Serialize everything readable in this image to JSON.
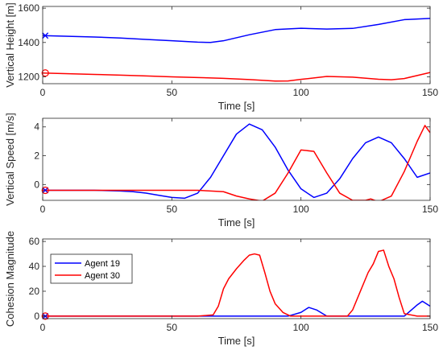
{
  "chart_data": [
    {
      "type": "line",
      "xlabel": "Time [s]",
      "ylabel": "Vertical Height [m]",
      "xlim": [
        0,
        150
      ],
      "ylim": [
        1160,
        1610
      ],
      "xticks": [
        0,
        50,
        100,
        150
      ],
      "yticks": [
        1200,
        1400,
        1600
      ],
      "grid": false,
      "start_markers": [
        {
          "series": "Agent 19",
          "marker": "x",
          "x": 1,
          "y": 1440
        },
        {
          "series": "Agent 30",
          "marker": "o",
          "x": 1,
          "y": 1222
        }
      ],
      "series": [
        {
          "name": "Agent 19",
          "color": "#0000FF",
          "x": [
            0,
            10,
            20,
            30,
            40,
            50,
            60,
            65,
            70,
            80,
            90,
            100,
            110,
            120,
            130,
            140,
            150
          ],
          "y": [
            1440,
            1436,
            1432,
            1426,
            1418,
            1410,
            1402,
            1400,
            1410,
            1445,
            1475,
            1483,
            1478,
            1482,
            1505,
            1533,
            1540
          ]
        },
        {
          "name": "Agent 30",
          "color": "#FF0000",
          "x": [
            0,
            10,
            20,
            30,
            40,
            50,
            60,
            70,
            80,
            90,
            95,
            100,
            110,
            120,
            130,
            135,
            140,
            150
          ],
          "y": [
            1222,
            1218,
            1214,
            1210,
            1205,
            1200,
            1196,
            1191,
            1184,
            1175,
            1176,
            1185,
            1202,
            1198,
            1186,
            1183,
            1190,
            1225
          ]
        }
      ]
    },
    {
      "type": "line",
      "xlabel": "Time [s]",
      "ylabel": "Vertical Speed [m/s]",
      "xlim": [
        0,
        150
      ],
      "ylim": [
        -1.1,
        4.6
      ],
      "xticks": [
        0,
        50,
        100,
        150
      ],
      "yticks": [
        0,
        2,
        4
      ],
      "grid": false,
      "start_markers": [
        {
          "series": "Agent 19",
          "marker": "x",
          "x": 1,
          "y": -0.4
        },
        {
          "series": "Agent 30",
          "marker": "o",
          "x": 1,
          "y": -0.4
        }
      ],
      "series": [
        {
          "name": "Agent 19",
          "color": "#0000FF",
          "x": [
            0,
            10,
            20,
            30,
            35,
            40,
            45,
            50,
            55,
            60,
            65,
            70,
            75,
            80,
            85,
            90,
            95,
            100,
            105,
            110,
            115,
            120,
            125,
            130,
            135,
            140,
            145,
            150
          ],
          "y": [
            -0.4,
            -0.4,
            -0.4,
            -0.45,
            -0.5,
            -0.6,
            -0.75,
            -0.9,
            -0.95,
            -0.6,
            0.5,
            2.0,
            3.5,
            4.2,
            3.8,
            2.6,
            1.0,
            -0.3,
            -0.9,
            -0.6,
            0.4,
            1.8,
            2.9,
            3.3,
            2.9,
            1.8,
            0.5,
            0.8
          ]
        },
        {
          "name": "Agent 30",
          "color": "#FF0000",
          "x": [
            0,
            10,
            20,
            30,
            40,
            50,
            60,
            65,
            70,
            75,
            80,
            85,
            90,
            95,
            100,
            105,
            110,
            115,
            120,
            125,
            127,
            130,
            135,
            140,
            145,
            148,
            150
          ],
          "y": [
            -0.4,
            -0.4,
            -0.4,
            -0.4,
            -0.4,
            -0.4,
            -0.4,
            -0.45,
            -0.5,
            -0.8,
            -1.0,
            -1.15,
            -0.6,
            0.8,
            2.4,
            2.3,
            0.8,
            -0.6,
            -1.1,
            -1.1,
            -1.0,
            -1.2,
            -0.8,
            0.9,
            3.0,
            4.1,
            3.6
          ]
        }
      ]
    },
    {
      "type": "line",
      "xlabel": "Time [s]",
      "ylabel": "Cohesion Magnitude",
      "xlim": [
        0,
        150
      ],
      "ylim": [
        -2,
        62
      ],
      "xticks": [
        0,
        50,
        100,
        150
      ],
      "yticks": [
        0,
        20,
        40,
        60
      ],
      "grid": false,
      "legend": {
        "placement": "top-left",
        "entries": [
          "Agent 19",
          "Agent 30"
        ]
      },
      "start_markers": [
        {
          "series": "Agent 19",
          "marker": "x",
          "x": 1,
          "y": 0
        },
        {
          "series": "Agent 30",
          "marker": "o",
          "x": 1,
          "y": 0
        }
      ],
      "series": [
        {
          "name": "Agent 19",
          "color": "#0000FF",
          "x": [
            0,
            20,
            40,
            60,
            80,
            95,
            100,
            103,
            106,
            110,
            120,
            130,
            140,
            145,
            147,
            150
          ],
          "y": [
            0,
            0,
            0,
            0,
            0,
            0,
            3,
            7,
            5,
            0,
            0,
            0,
            0,
            9,
            12,
            8
          ]
        },
        {
          "name": "Agent 30",
          "color": "#FF0000",
          "x": [
            0,
            20,
            40,
            60,
            66,
            68,
            70,
            72,
            75,
            78,
            80,
            82,
            84,
            86,
            88,
            90,
            93,
            96,
            98,
            100,
            110,
            118,
            120,
            123,
            126,
            128,
            130,
            132,
            134,
            136,
            138,
            140,
            145,
            150
          ],
          "y": [
            0,
            0,
            0,
            0,
            1,
            8,
            22,
            30,
            38,
            45,
            49,
            50,
            49,
            35,
            20,
            10,
            3,
            0,
            0,
            0,
            0,
            0,
            5,
            20,
            35,
            42,
            52,
            53,
            40,
            30,
            15,
            2,
            0,
            0
          ]
        }
      ]
    }
  ]
}
